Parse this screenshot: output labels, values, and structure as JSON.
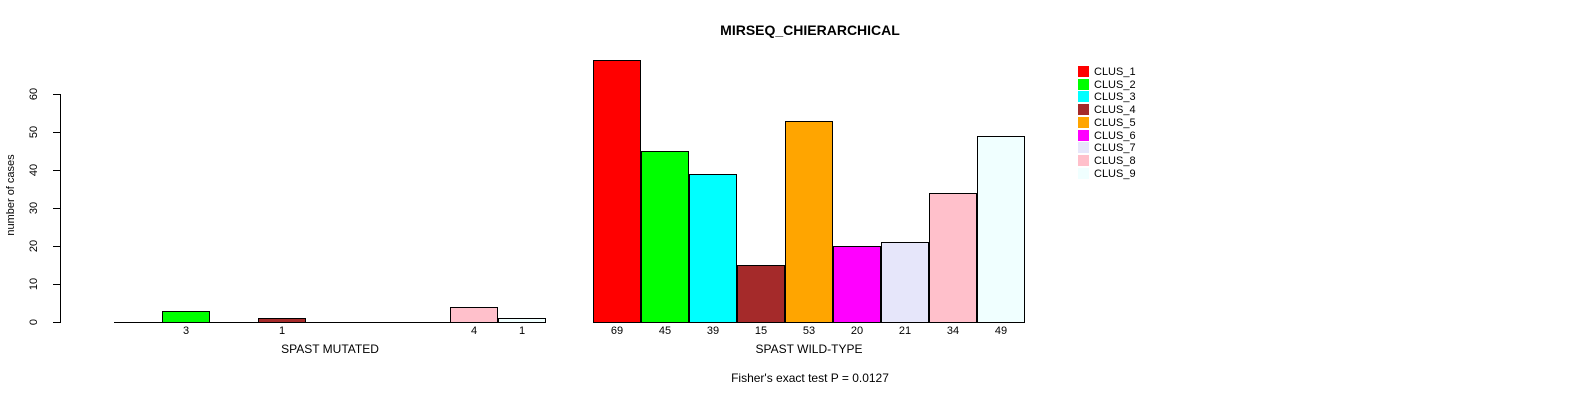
{
  "chart_data": {
    "type": "bar",
    "title": "MIRSEQ_CHIERARCHICAL",
    "ylabel": "number of cases",
    "ylim": [
      0,
      60
    ],
    "yticks": [
      0,
      10,
      20,
      30,
      40,
      50,
      60
    ],
    "grid": false,
    "legend_position": "right",
    "categories": [
      "CLUS_1",
      "CLUS_2",
      "CLUS_3",
      "CLUS_4",
      "CLUS_5",
      "CLUS_6",
      "CLUS_7",
      "CLUS_8",
      "CLUS_9"
    ],
    "colors": [
      "#FF0000",
      "#00FF00",
      "#00FFFF",
      "#A52A2A",
      "#FFA500",
      "#FF00FF",
      "#E6E6FA",
      "#FFC0CB",
      "#F0FFFF"
    ],
    "groups": [
      {
        "label": "SPAST MUTATED",
        "values": [
          0,
          3,
          0,
          1,
          0,
          0,
          0,
          4,
          1
        ]
      },
      {
        "label": "SPAST WILD-TYPE",
        "values": [
          69,
          45,
          39,
          15,
          53,
          20,
          21,
          34,
          49
        ]
      }
    ],
    "bar_value_labels": "shown under each non-zero bar",
    "annotation": "Fisher's exact test P = 0.0127"
  }
}
